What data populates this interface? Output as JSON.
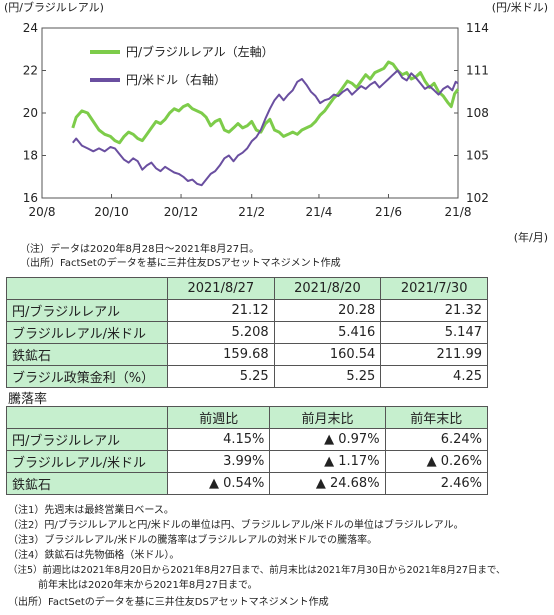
{
  "chart_data": {
    "type": "line",
    "left_axis_unit": "(円/ブラジルレアル)",
    "right_axis_unit": "(円/米ドル)",
    "x_unit": "(年/月)",
    "left_ylim": [
      16,
      24
    ],
    "right_ylim": [
      102,
      114
    ],
    "left_ticks": [
      "16",
      "18",
      "20",
      "22",
      "24"
    ],
    "right_ticks": [
      "102",
      "105",
      "108",
      "111",
      "114"
    ],
    "x_ticks": [
      "20/8",
      "20/10",
      "20/12",
      "21/2",
      "21/4",
      "21/6",
      "21/8"
    ],
    "x_tick_days": [
      0,
      61,
      122,
      184,
      243,
      304,
      365
    ],
    "x_range_days": [
      0,
      365
    ],
    "grid": false,
    "legend_position": "top-left",
    "series": [
      {
        "name": "円/ブラジルレアル（左軸）",
        "axis": "left",
        "color": "#7dcc4a",
        "points": [
          [
            27,
            19.3
          ],
          [
            30,
            19.8
          ],
          [
            35,
            20.1
          ],
          [
            40,
            20.0
          ],
          [
            45,
            19.6
          ],
          [
            50,
            19.2
          ],
          [
            55,
            19.0
          ],
          [
            60,
            18.9
          ],
          [
            64,
            18.7
          ],
          [
            68,
            18.6
          ],
          [
            72,
            18.9
          ],
          [
            76,
            19.1
          ],
          [
            80,
            19.0
          ],
          [
            84,
            18.8
          ],
          [
            88,
            18.7
          ],
          [
            92,
            19.0
          ],
          [
            96,
            19.3
          ],
          [
            100,
            19.6
          ],
          [
            104,
            19.5
          ],
          [
            108,
            19.7
          ],
          [
            112,
            20.0
          ],
          [
            116,
            20.2
          ],
          [
            120,
            20.1
          ],
          [
            124,
            20.3
          ],
          [
            128,
            20.4
          ],
          [
            132,
            20.2
          ],
          [
            136,
            20.1
          ],
          [
            140,
            20.0
          ],
          [
            144,
            19.8
          ],
          [
            148,
            19.4
          ],
          [
            152,
            19.6
          ],
          [
            156,
            19.7
          ],
          [
            160,
            19.2
          ],
          [
            164,
            19.1
          ],
          [
            168,
            19.3
          ],
          [
            172,
            19.5
          ],
          [
            176,
            19.3
          ],
          [
            180,
            19.4
          ],
          [
            184,
            19.6
          ],
          [
            188,
            19.2
          ],
          [
            192,
            19.1
          ],
          [
            196,
            19.5
          ],
          [
            200,
            19.7
          ],
          [
            204,
            19.2
          ],
          [
            208,
            19.1
          ],
          [
            212,
            18.9
          ],
          [
            216,
            19.0
          ],
          [
            220,
            19.1
          ],
          [
            224,
            19.0
          ],
          [
            228,
            19.2
          ],
          [
            232,
            19.3
          ],
          [
            236,
            19.4
          ],
          [
            240,
            19.6
          ],
          [
            244,
            19.9
          ],
          [
            248,
            20.1
          ],
          [
            252,
            20.4
          ],
          [
            256,
            20.7
          ],
          [
            260,
            20.9
          ],
          [
            264,
            21.2
          ],
          [
            268,
            21.5
          ],
          [
            272,
            21.4
          ],
          [
            276,
            21.2
          ],
          [
            280,
            21.5
          ],
          [
            284,
            21.8
          ],
          [
            288,
            21.6
          ],
          [
            292,
            21.9
          ],
          [
            296,
            22.0
          ],
          [
            300,
            22.1
          ],
          [
            304,
            22.4
          ],
          [
            308,
            22.3
          ],
          [
            312,
            22.0
          ],
          [
            316,
            21.8
          ],
          [
            320,
            21.9
          ],
          [
            324,
            21.6
          ],
          [
            328,
            21.7
          ],
          [
            332,
            21.9
          ],
          [
            336,
            21.5
          ],
          [
            340,
            21.2
          ],
          [
            344,
            21.4
          ],
          [
            348,
            21.0
          ],
          [
            352,
            20.8
          ],
          [
            356,
            20.5
          ],
          [
            359,
            20.3
          ],
          [
            362,
            20.9
          ],
          [
            365,
            21.12
          ]
        ]
      },
      {
        "name": "円/米ドル（右軸）",
        "axis": "right",
        "color": "#6a4fa0",
        "points": [
          [
            27,
            105.9
          ],
          [
            30,
            106.2
          ],
          [
            35,
            105.7
          ],
          [
            40,
            105.5
          ],
          [
            45,
            105.3
          ],
          [
            50,
            105.5
          ],
          [
            55,
            105.3
          ],
          [
            60,
            105.6
          ],
          [
            64,
            105.5
          ],
          [
            68,
            105.1
          ],
          [
            72,
            104.7
          ],
          [
            76,
            104.5
          ],
          [
            80,
            104.8
          ],
          [
            84,
            104.6
          ],
          [
            88,
            104.0
          ],
          [
            92,
            104.3
          ],
          [
            96,
            104.5
          ],
          [
            100,
            104.1
          ],
          [
            104,
            103.9
          ],
          [
            108,
            104.2
          ],
          [
            112,
            104.0
          ],
          [
            116,
            103.8
          ],
          [
            120,
            103.7
          ],
          [
            124,
            103.5
          ],
          [
            128,
            103.2
          ],
          [
            132,
            103.3
          ],
          [
            136,
            103.0
          ],
          [
            140,
            102.9
          ],
          [
            144,
            103.3
          ],
          [
            148,
            103.7
          ],
          [
            152,
            103.9
          ],
          [
            156,
            104.3
          ],
          [
            160,
            104.8
          ],
          [
            164,
            105.0
          ],
          [
            168,
            104.6
          ],
          [
            172,
            105.0
          ],
          [
            176,
            105.2
          ],
          [
            180,
            105.5
          ],
          [
            184,
            106.0
          ],
          [
            188,
            106.3
          ],
          [
            192,
            106.8
          ],
          [
            196,
            107.6
          ],
          [
            200,
            108.3
          ],
          [
            204,
            108.9
          ],
          [
            208,
            109.3
          ],
          [
            212,
            108.9
          ],
          [
            216,
            109.3
          ],
          [
            220,
            109.6
          ],
          [
            224,
            110.2
          ],
          [
            228,
            110.4
          ],
          [
            232,
            110.0
          ],
          [
            236,
            109.5
          ],
          [
            240,
            109.2
          ],
          [
            244,
            108.7
          ],
          [
            248,
            108.9
          ],
          [
            252,
            109.0
          ],
          [
            256,
            109.3
          ],
          [
            260,
            109.2
          ],
          [
            264,
            109.5
          ],
          [
            268,
            109.7
          ],
          [
            272,
            109.3
          ],
          [
            276,
            109.6
          ],
          [
            280,
            109.9
          ],
          [
            284,
            109.7
          ],
          [
            288,
            110.0
          ],
          [
            292,
            110.2
          ],
          [
            296,
            109.8
          ],
          [
            300,
            110.1
          ],
          [
            304,
            110.4
          ],
          [
            308,
            110.7
          ],
          [
            312,
            111.0
          ],
          [
            316,
            110.5
          ],
          [
            320,
            110.3
          ],
          [
            324,
            110.8
          ],
          [
            328,
            110.5
          ],
          [
            332,
            110.1
          ],
          [
            336,
            109.7
          ],
          [
            340,
            109.9
          ],
          [
            344,
            109.6
          ],
          [
            348,
            109.3
          ],
          [
            352,
            109.7
          ],
          [
            356,
            109.9
          ],
          [
            360,
            109.6
          ],
          [
            363,
            110.2
          ],
          [
            365,
            110.1
          ]
        ]
      }
    ]
  },
  "notes_top": [
    "（注）データは2020年8月28日～2021年8月27日。",
    "（出所）FactSetのデータを基に三井住友DSアセットマネジメント作成"
  ],
  "table1": {
    "headers": [
      "",
      "2021/8/27",
      "2021/8/20",
      "2021/7/30"
    ],
    "rows": [
      {
        "label": "円/ブラジルレアル",
        "values": [
          "21.12",
          "20.28",
          "21.32"
        ]
      },
      {
        "label": "ブラジルレアル/米ドル",
        "values": [
          "5.208",
          "5.416",
          "5.147"
        ]
      },
      {
        "label": "鉄鉱石",
        "values": [
          "159.68",
          "160.54",
          "211.99"
        ]
      },
      {
        "label": "ブラジル政策金利（%）",
        "values": [
          "5.25",
          "5.25",
          "4.25"
        ]
      }
    ]
  },
  "section_title": "騰落率",
  "table2": {
    "headers": [
      "",
      "前週比",
      "前月末比",
      "前年末比"
    ],
    "rows": [
      {
        "label": "円/ブラジルレアル",
        "values": [
          "4.15%",
          "▲ 0.97%",
          "6.24%"
        ]
      },
      {
        "label": "ブラジルレアル/米ドル",
        "values": [
          "3.99%",
          "▲ 1.17%",
          "▲ 0.26%"
        ]
      },
      {
        "label": "鉄鉱石",
        "values": [
          "▲ 0.54%",
          "▲ 24.68%",
          "2.46%"
        ]
      }
    ]
  },
  "notes_bottom": [
    "（注1）先週末は最終営業日ベース。",
    "（注2）円/ブラジルレアルと円/米ドルの単位は円、ブラジルレアル/米ドルの単位はブラジルレアル。",
    "（注3）ブラジルレアル/米ドルの騰落率はブラジルレアルの対米ドルでの騰落率。",
    "（注4）鉄鉱石は先物価格（米ドル）。",
    "（注5）前週比は2021年8月20日から2021年8月27日まで、前月末比は2021年7月30日から2021年8月27日まで、",
    "　　　前年末比は2020年末から2021年8月27日まで。",
    "（出所）FactSetのデータを基に三井住友DSアセットマネジメント作成"
  ]
}
